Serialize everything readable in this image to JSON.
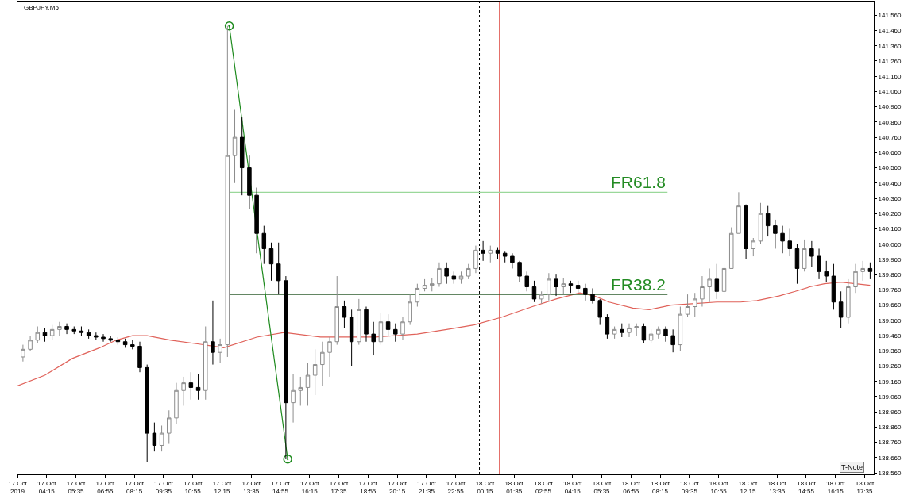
{
  "chart_data": {
    "type": "candlestick",
    "title": "GBPJPY,M5",
    "x": [
      "2019-10-17T03:10",
      "2019-10-17T03:30",
      "2019-10-17T03:50",
      "2019-10-17T04:10",
      "2019-10-17T04:30",
      "2019-10-17T04:50",
      "2019-10-17T05:10",
      "2019-10-17T05:30",
      "2019-10-17T05:50",
      "2019-10-17T06:10",
      "2019-10-17T06:30",
      "2019-10-17T06:50",
      "2019-10-17T07:10",
      "2019-10-17T07:30",
      "2019-10-17T07:50",
      "2019-10-17T08:10",
      "2019-10-17T08:30",
      "2019-10-17T08:50",
      "2019-10-17T09:10",
      "2019-10-17T09:30",
      "2019-10-17T09:50",
      "2019-10-17T10:10",
      "2019-10-17T10:30",
      "2019-10-17T10:50",
      "2019-10-17T11:10",
      "2019-10-17T11:30",
      "2019-10-17T11:50",
      "2019-10-17T12:10",
      "2019-10-17T12:30",
      "2019-10-17T12:50",
      "2019-10-17T13:10",
      "2019-10-17T13:30",
      "2019-10-17T13:50",
      "2019-10-17T14:10",
      "2019-10-17T14:30",
      "2019-10-17T14:50",
      "2019-10-17T15:10",
      "2019-10-17T15:30",
      "2019-10-17T15:50",
      "2019-10-17T16:10",
      "2019-10-17T16:30",
      "2019-10-17T16:50",
      "2019-10-17T17:10",
      "2019-10-17T17:30",
      "2019-10-17T17:50",
      "2019-10-17T18:10",
      "2019-10-17T18:30",
      "2019-10-17T18:50",
      "2019-10-17T19:10",
      "2019-10-17T19:30",
      "2019-10-17T19:50",
      "2019-10-17T20:10",
      "2019-10-17T20:30",
      "2019-10-17T20:50",
      "2019-10-17T21:10",
      "2019-10-17T21:30",
      "2019-10-17T21:50",
      "2019-10-17T22:10",
      "2019-10-17T22:30",
      "2019-10-17T22:50",
      "2019-10-17T23:10",
      "2019-10-17T23:30",
      "2019-10-17T23:50",
      "2019-10-18T00:10",
      "2019-10-18T00:30",
      "2019-10-18T00:50",
      "2019-10-18T01:10",
      "2019-10-18T01:30",
      "2019-10-18T01:50",
      "2019-10-18T02:10",
      "2019-10-18T02:30",
      "2019-10-18T02:50",
      "2019-10-18T03:10",
      "2019-10-18T03:30",
      "2019-10-18T03:50",
      "2019-10-18T04:10",
      "2019-10-18T04:30",
      "2019-10-18T04:50",
      "2019-10-18T05:10",
      "2019-10-18T05:30",
      "2019-10-18T05:50",
      "2019-10-18T06:10",
      "2019-10-18T06:30",
      "2019-10-18T06:50",
      "2019-10-18T07:10",
      "2019-10-18T07:30",
      "2019-10-18T07:50",
      "2019-10-18T08:10",
      "2019-10-18T08:30",
      "2019-10-18T08:50",
      "2019-10-18T09:10",
      "2019-10-18T09:30",
      "2019-10-18T09:50",
      "2019-10-18T10:10",
      "2019-10-18T10:30",
      "2019-10-18T10:50",
      "2019-10-18T11:10",
      "2019-10-18T11:30",
      "2019-10-18T11:50",
      "2019-10-18T12:10",
      "2019-10-18T12:30",
      "2019-10-18T12:50",
      "2019-10-18T13:10",
      "2019-10-18T13:30",
      "2019-10-18T13:50",
      "2019-10-18T14:10",
      "2019-10-18T14:30",
      "2019-10-18T14:50",
      "2019-10-18T15:10",
      "2019-10-18T15:30",
      "2019-10-18T15:50",
      "2019-10-18T16:10",
      "2019-10-18T16:30",
      "2019-10-18T16:50",
      "2019-10-18T17:10",
      "2019-10-18T17:30",
      "2019-10-18T17:50"
    ],
    "ohlc": [
      [
        139.32,
        139.4,
        139.29,
        139.37
      ],
      [
        139.37,
        139.46,
        139.36,
        139.43
      ],
      [
        139.43,
        139.52,
        139.41,
        139.48
      ],
      [
        139.48,
        139.51,
        139.42,
        139.46
      ],
      [
        139.46,
        139.53,
        139.43,
        139.5
      ],
      [
        139.5,
        139.55,
        139.46,
        139.52
      ],
      [
        139.52,
        139.54,
        139.47,
        139.5
      ],
      [
        139.5,
        139.52,
        139.47,
        139.49
      ],
      [
        139.49,
        139.52,
        139.46,
        139.48
      ],
      [
        139.48,
        139.5,
        139.44,
        139.46
      ],
      [
        139.46,
        139.48,
        139.43,
        139.45
      ],
      [
        139.45,
        139.47,
        139.42,
        139.44
      ],
      [
        139.44,
        139.46,
        139.42,
        139.43
      ],
      [
        139.43,
        139.45,
        139.4,
        139.42
      ],
      [
        139.42,
        139.44,
        139.38,
        139.4
      ],
      [
        139.4,
        139.43,
        139.37,
        139.39
      ],
      [
        139.39,
        139.42,
        139.22,
        139.25
      ],
      [
        139.25,
        139.27,
        138.63,
        138.82
      ],
      [
        138.82,
        138.89,
        138.7,
        138.74
      ],
      [
        138.74,
        138.87,
        138.7,
        138.82
      ],
      [
        138.82,
        138.97,
        138.75,
        138.92
      ],
      [
        138.92,
        139.15,
        138.88,
        139.1
      ],
      [
        139.1,
        139.19,
        139.0,
        139.15
      ],
      [
        139.15,
        139.22,
        139.04,
        139.12
      ],
      [
        139.12,
        139.21,
        139.04,
        139.1
      ],
      [
        139.1,
        139.52,
        139.04,
        139.42
      ],
      [
        139.42,
        139.69,
        139.27,
        139.35
      ],
      [
        139.35,
        139.44,
        139.28,
        139.4
      ],
      [
        139.4,
        141.49,
        139.32,
        140.64
      ],
      [
        140.64,
        140.94,
        140.46,
        140.76
      ],
      [
        140.76,
        140.89,
        140.38,
        140.56
      ],
      [
        140.56,
        140.64,
        140.29,
        140.38
      ],
      [
        140.38,
        140.43,
        140.0,
        140.13
      ],
      [
        140.13,
        140.18,
        139.93,
        140.03
      ],
      [
        140.03,
        140.07,
        139.82,
        139.93
      ],
      [
        139.93,
        140.07,
        139.73,
        139.82
      ],
      [
        139.82,
        139.85,
        138.65,
        139.02
      ],
      [
        139.02,
        139.21,
        138.89,
        139.1
      ],
      [
        139.1,
        139.19,
        139.0,
        139.12
      ],
      [
        139.12,
        139.28,
        139.0,
        139.2
      ],
      [
        139.2,
        139.37,
        139.07,
        139.27
      ],
      [
        139.27,
        139.42,
        139.13,
        139.35
      ],
      [
        139.35,
        139.45,
        139.19,
        139.42
      ],
      [
        139.42,
        139.85,
        139.4,
        139.65
      ],
      [
        139.65,
        139.69,
        139.51,
        139.58
      ],
      [
        139.58,
        139.63,
        139.26,
        139.42
      ],
      [
        139.42,
        139.7,
        139.4,
        139.63
      ],
      [
        139.63,
        139.65,
        139.42,
        139.47
      ],
      [
        139.47,
        139.55,
        139.33,
        139.42
      ],
      [
        139.42,
        139.61,
        139.4,
        139.55
      ],
      [
        139.55,
        139.6,
        139.46,
        139.5
      ],
      [
        139.5,
        139.54,
        139.42,
        139.47
      ],
      [
        139.47,
        139.58,
        139.43,
        139.55
      ],
      [
        139.55,
        139.73,
        139.53,
        139.68
      ],
      [
        139.68,
        139.8,
        139.65,
        139.77
      ],
      [
        139.77,
        139.83,
        139.75,
        139.79
      ],
      [
        139.79,
        139.84,
        139.75,
        139.8
      ],
      [
        139.8,
        139.94,
        139.78,
        139.9
      ],
      [
        139.9,
        139.94,
        139.8,
        139.85
      ],
      [
        139.85,
        139.88,
        139.8,
        139.83
      ],
      [
        139.83,
        139.88,
        139.8,
        139.85
      ],
      [
        139.85,
        139.93,
        139.83,
        139.9
      ],
      [
        139.9,
        140.05,
        139.87,
        140.02
      ],
      [
        140.02,
        140.08,
        139.95,
        140.0
      ],
      [
        140.0,
        140.05,
        139.94,
        140.02
      ],
      [
        140.02,
        140.04,
        139.96,
        140.0
      ],
      [
        140.0,
        140.01,
        139.94,
        139.98
      ],
      [
        139.98,
        140.0,
        139.9,
        139.94
      ],
      [
        139.94,
        139.95,
        139.81,
        139.85
      ],
      [
        139.85,
        139.88,
        139.75,
        139.78
      ],
      [
        139.78,
        139.82,
        139.68,
        139.7
      ],
      [
        139.7,
        139.75,
        139.67,
        139.73
      ],
      [
        139.73,
        139.87,
        139.69,
        139.83
      ],
      [
        139.83,
        139.86,
        139.72,
        139.78
      ],
      [
        139.78,
        139.84,
        139.73,
        139.8
      ],
      [
        139.8,
        139.82,
        139.74,
        139.79
      ],
      [
        139.79,
        139.82,
        139.74,
        139.77
      ],
      [
        139.77,
        139.8,
        139.69,
        139.73
      ],
      [
        139.73,
        139.77,
        139.67,
        139.69
      ],
      [
        139.69,
        139.7,
        139.53,
        139.58
      ],
      [
        139.58,
        139.6,
        139.44,
        139.47
      ],
      [
        139.47,
        139.52,
        139.44,
        139.5
      ],
      [
        139.5,
        139.54,
        139.45,
        139.48
      ],
      [
        139.48,
        139.54,
        139.45,
        139.51
      ],
      [
        139.51,
        139.54,
        139.46,
        139.52
      ],
      [
        139.52,
        139.54,
        139.41,
        139.43
      ],
      [
        139.43,
        139.5,
        139.41,
        139.47
      ],
      [
        139.47,
        139.52,
        139.44,
        139.5
      ],
      [
        139.5,
        139.52,
        139.42,
        139.46
      ],
      [
        139.46,
        139.5,
        139.35,
        139.4
      ],
      [
        139.4,
        139.65,
        139.36,
        139.6
      ],
      [
        139.6,
        139.73,
        139.58,
        139.65
      ],
      [
        139.65,
        139.74,
        139.58,
        139.7
      ],
      [
        139.7,
        139.85,
        139.65,
        139.78
      ],
      [
        139.78,
        139.9,
        139.68,
        139.83
      ],
      [
        139.83,
        139.93,
        139.7,
        139.75
      ],
      [
        139.75,
        139.93,
        139.73,
        139.9
      ],
      [
        139.9,
        140.17,
        139.9,
        140.13
      ],
      [
        140.13,
        140.4,
        140.13,
        140.31
      ],
      [
        140.31,
        140.32,
        139.96,
        140.03
      ],
      [
        140.03,
        140.1,
        139.98,
        140.08
      ],
      [
        140.08,
        140.33,
        140.06,
        140.26
      ],
      [
        140.26,
        140.31,
        140.11,
        140.18
      ],
      [
        140.18,
        140.22,
        140.03,
        140.13
      ],
      [
        140.13,
        140.18,
        140.0,
        140.08
      ],
      [
        140.08,
        140.16,
        139.98,
        140.03
      ],
      [
        140.03,
        140.06,
        139.8,
        139.9
      ],
      [
        139.9,
        140.09,
        139.88,
        140.03
      ],
      [
        140.03,
        140.08,
        139.91,
        139.98
      ],
      [
        139.98,
        140.03,
        139.83,
        139.88
      ],
      [
        139.88,
        139.95,
        139.81,
        139.85
      ],
      [
        139.85,
        139.93,
        139.63,
        139.68
      ],
      [
        139.68,
        139.75,
        139.51,
        139.58
      ],
      [
        139.58,
        139.83,
        139.54,
        139.78
      ],
      [
        139.78,
        139.93,
        139.74,
        139.88
      ],
      [
        139.88,
        139.95,
        139.82,
        139.9
      ],
      [
        139.9,
        139.94,
        139.83,
        139.88
      ]
    ],
    "series": [
      {
        "type": "line",
        "color": "#e0625a",
        "x": [
          "2019-10-17T02:55",
          "2019-10-17T04:10",
          "2019-10-17T05:25",
          "2019-10-17T06:40",
          "2019-10-17T07:25",
          "2019-10-17T08:10",
          "2019-10-17T08:50",
          "2019-10-17T09:55",
          "2019-10-17T11:25",
          "2019-10-17T12:20",
          "2019-10-17T13:50",
          "2019-10-17T15:05",
          "2019-10-17T16:45",
          "2019-10-17T19:15",
          "2019-10-17T21:10",
          "2019-10-17T22:30",
          "2019-10-17T23:45",
          "2019-10-18T01:00",
          "2019-10-18T02:25",
          "2019-10-18T03:30",
          "2019-10-18T04:35",
          "2019-10-18T05:15",
          "2019-10-18T05:55",
          "2019-10-18T07:00",
          "2019-10-18T07:45",
          "2019-10-18T08:45",
          "2019-10-18T09:50",
          "2019-10-18T10:50",
          "2019-10-18T11:55",
          "2019-10-18T12:40",
          "2019-10-18T13:40",
          "2019-10-18T14:25",
          "2019-10-18T15:05",
          "2019-10-18T15:45",
          "2019-10-18T16:30",
          "2019-10-18T17:10",
          "2019-10-18T17:50"
        ],
        "values": [
          139.13,
          139.2,
          139.31,
          139.38,
          139.43,
          139.46,
          139.46,
          139.43,
          139.4,
          139.38,
          139.45,
          139.48,
          139.45,
          139.45,
          139.47,
          139.5,
          139.53,
          139.58,
          139.65,
          139.7,
          139.74,
          139.72,
          139.68,
          139.64,
          139.63,
          139.66,
          139.67,
          139.68,
          139.68,
          139.69,
          139.72,
          139.75,
          139.78,
          139.8,
          139.81,
          139.8,
          139.79
        ]
      },
      {
        "type": "line",
        "color": "#9ad89a",
        "x": [
          "2019-10-17T12:35",
          "2019-10-18T08:35"
        ],
        "values": [
          140.4,
          140.4
        ]
      },
      {
        "type": "line",
        "color": "#2f5e2f",
        "x": [
          "2019-10-17T12:35",
          "2019-10-18T08:35"
        ],
        "values": [
          139.73,
          139.73
        ]
      },
      {
        "type": "line",
        "color": "#1d8a1d",
        "marker": "circle",
        "x": [
          "2019-10-17T12:35",
          "2019-10-17T15:15"
        ],
        "values": [
          141.49,
          138.65
        ]
      }
    ],
    "ref_lines": [
      {
        "axis": "x",
        "value": "2019-10-18T00:00",
        "color": "#000000",
        "line_style": "dotted"
      },
      {
        "axis": "x",
        "value": "2019-10-18T00:55",
        "color": "#d9342b",
        "line_style": "solid"
      }
    ],
    "annotations": [
      {
        "text": "FR61.8",
        "x": "2019-10-18T08:35",
        "y": 140.4
      },
      {
        "text": "FR38.2",
        "x": "2019-10-18T08:35",
        "y": 139.73
      },
      "T-Note"
    ],
    "xlim": [
      "2019-10-17T02:55",
      "2019-10-18T18:00"
    ],
    "xticks": [
      {
        "value": "2019-10-17T02:55",
        "label": "17 Oct 2019"
      },
      {
        "value": "2019-10-17T04:15",
        "label": "17 Oct 04:15"
      },
      {
        "value": "2019-10-17T05:35",
        "label": "17 Oct 05:35"
      },
      {
        "value": "2019-10-17T06:55",
        "label": "17 Oct 06:55"
      },
      {
        "value": "2019-10-17T08:15",
        "label": "17 Oct 08:15"
      },
      {
        "value": "2019-10-17T09:35",
        "label": "17 Oct 09:35"
      },
      {
        "value": "2019-10-17T10:55",
        "label": "17 Oct 10:55"
      },
      {
        "value": "2019-10-17T12:15",
        "label": "17 Oct 12:15"
      },
      {
        "value": "2019-10-17T13:35",
        "label": "17 Oct 13:35"
      },
      {
        "value": "2019-10-17T14:55",
        "label": "17 Oct 14:55"
      },
      {
        "value": "2019-10-17T16:15",
        "label": "17 Oct 16:15"
      },
      {
        "value": "2019-10-17T17:35",
        "label": "17 Oct 17:35"
      },
      {
        "value": "2019-10-17T18:55",
        "label": "17 Oct 18:55"
      },
      {
        "value": "2019-10-17T20:15",
        "label": "17 Oct 20:15"
      },
      {
        "value": "2019-10-17T21:35",
        "label": "17 Oct 21:35"
      },
      {
        "value": "2019-10-17T22:55",
        "label": "17 Oct 22:55"
      },
      {
        "value": "2019-10-18T00:15",
        "label": "18 Oct 00:15"
      },
      {
        "value": "2019-10-18T01:35",
        "label": "18 Oct 01:35"
      },
      {
        "value": "2019-10-18T02:55",
        "label": "18 Oct 02:55"
      },
      {
        "value": "2019-10-18T04:15",
        "label": "18 Oct 04:15"
      },
      {
        "value": "2019-10-18T05:35",
        "label": "18 Oct 05:35"
      },
      {
        "value": "2019-10-18T06:55",
        "label": "18 Oct 06:55"
      },
      {
        "value": "2019-10-18T08:15",
        "label": "18 Oct 08:15"
      },
      {
        "value": "2019-10-18T09:35",
        "label": "18 Oct 09:35"
      },
      {
        "value": "2019-10-18T10:55",
        "label": "18 Oct 10:55"
      },
      {
        "value": "2019-10-18T12:15",
        "label": "18 Oct 12:15"
      },
      {
        "value": "2019-10-18T13:35",
        "label": "18 Oct 13:35"
      },
      {
        "value": "2019-10-18T14:55",
        "label": "18 Oct 14:55"
      },
      {
        "value": "2019-10-18T16:15",
        "label": "18 Oct 16:15"
      },
      {
        "value": "2019-10-18T17:35",
        "label": "18 Oct 17:35"
      }
    ],
    "ylim": [
      138.55,
      141.65
    ],
    "yticks": [
      {
        "value": 138.56,
        "label": "138.560"
      },
      {
        "value": 138.66,
        "label": "138.660"
      },
      {
        "value": 138.76,
        "label": "138.760"
      },
      {
        "value": 138.86,
        "label": "138.860"
      },
      {
        "value": 138.96,
        "label": "138.960"
      },
      {
        "value": 139.06,
        "label": "139.060"
      },
      {
        "value": 139.16,
        "label": "139.160"
      },
      {
        "value": 139.26,
        "label": "139.260"
      },
      {
        "value": 139.36,
        "label": "139.360"
      },
      {
        "value": 139.46,
        "label": "139.460"
      },
      {
        "value": 139.56,
        "label": "139.560"
      },
      {
        "value": 139.66,
        "label": "139.660"
      },
      {
        "value": 139.76,
        "label": "139.760"
      },
      {
        "value": 139.86,
        "label": "139.860"
      },
      {
        "value": 139.96,
        "label": "139.960"
      },
      {
        "value": 140.06,
        "label": "140.060"
      },
      {
        "value": 140.16,
        "label": "140.160"
      },
      {
        "value": 140.26,
        "label": "140.260"
      },
      {
        "value": 140.36,
        "label": "140.360"
      },
      {
        "value": 140.46,
        "label": "140.460"
      },
      {
        "value": 140.56,
        "label": "140.560"
      },
      {
        "value": 140.66,
        "label": "140.660"
      },
      {
        "value": 140.76,
        "label": "140.760"
      },
      {
        "value": 140.86,
        "label": "140.860"
      },
      {
        "value": 140.96,
        "label": "140.960"
      },
      {
        "value": 141.06,
        "label": "141.060"
      },
      {
        "value": 141.16,
        "label": "141.160"
      },
      {
        "value": 141.26,
        "label": "141.260"
      },
      {
        "value": 141.36,
        "label": "141.360"
      },
      {
        "value": 141.46,
        "label": "141.460"
      },
      {
        "value": 141.56,
        "label": "141.560"
      }
    ]
  }
}
